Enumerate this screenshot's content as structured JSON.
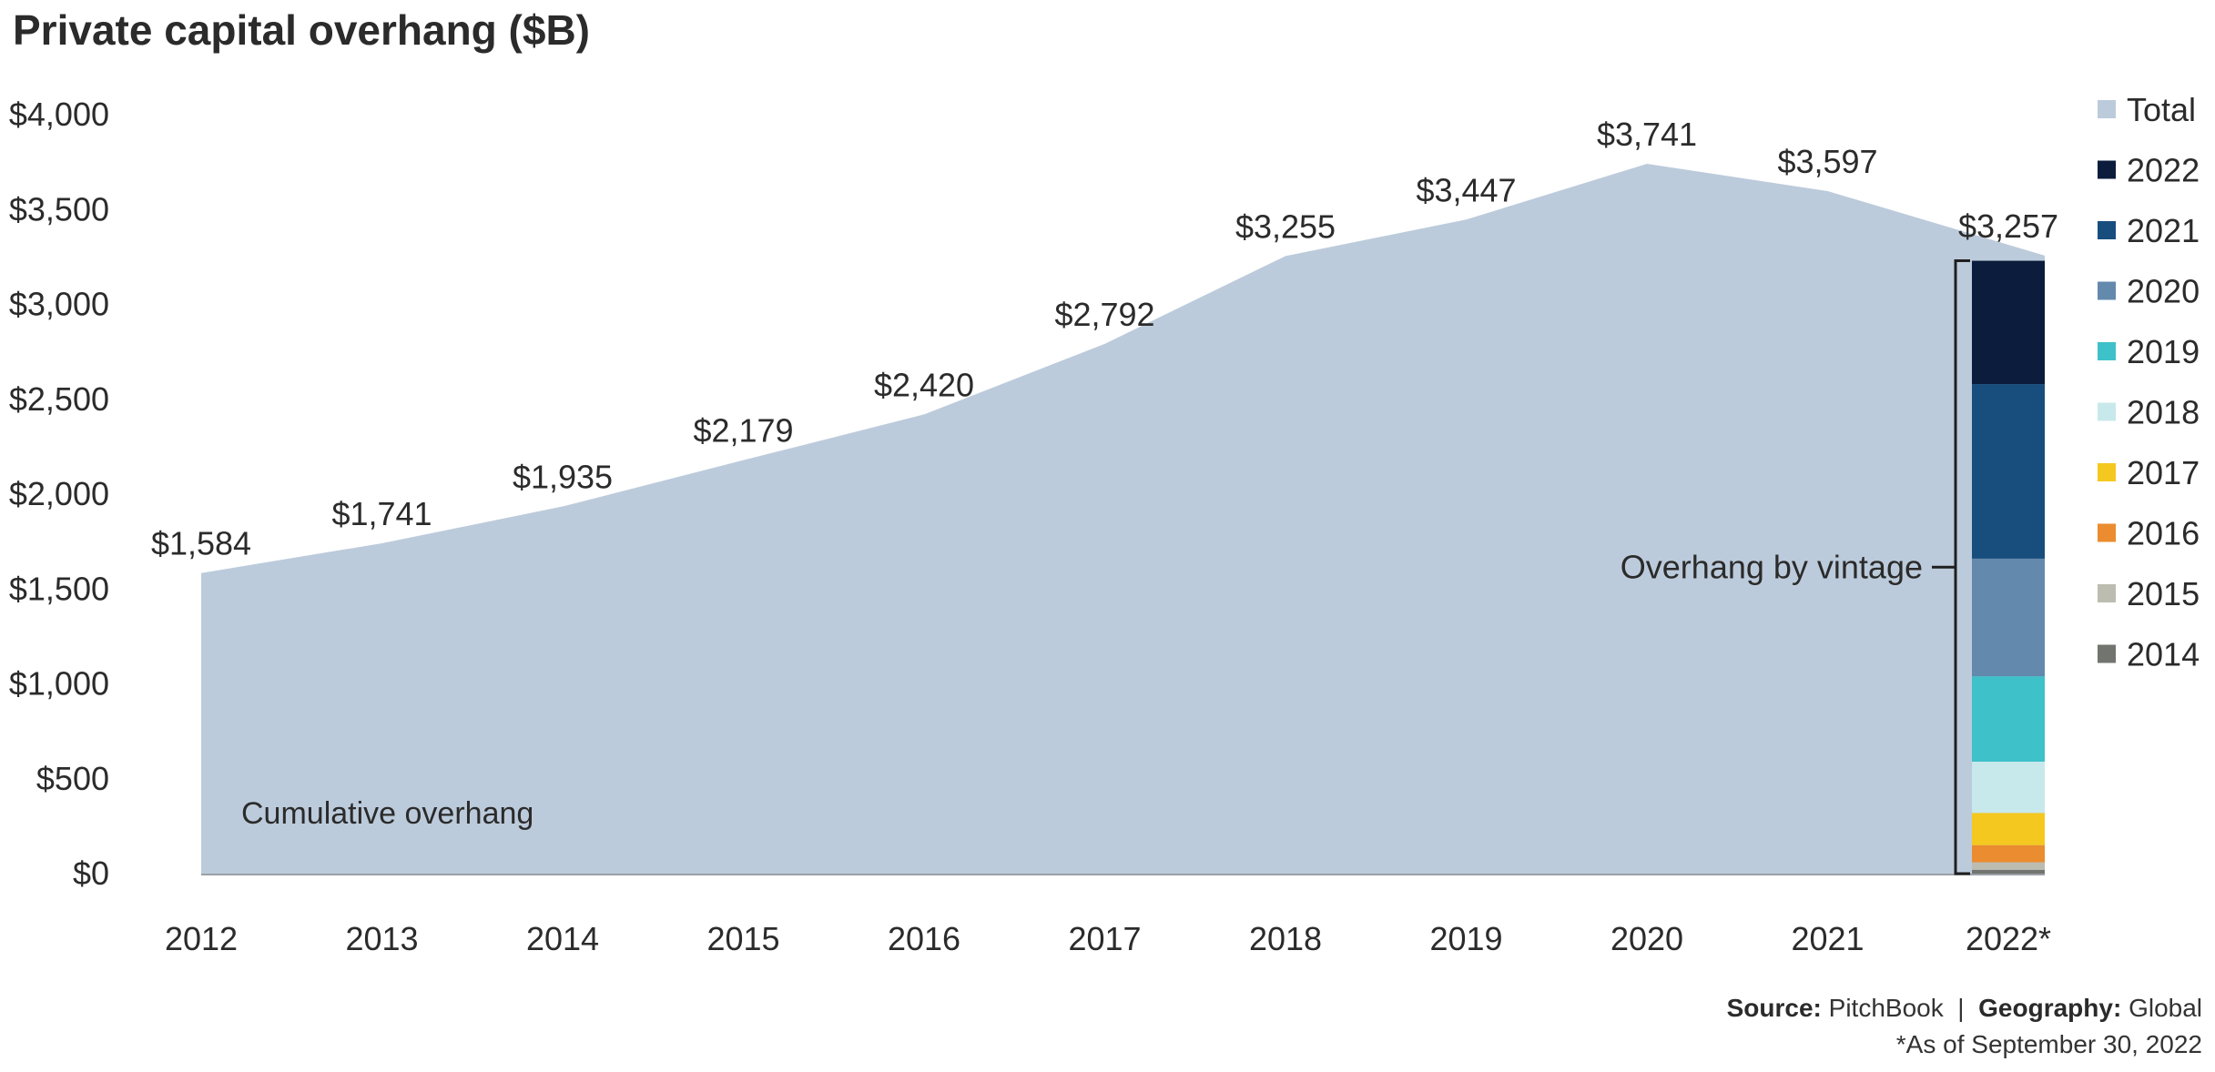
{
  "title": "Private capital overhang ($B)",
  "source": {
    "source_label": "Source:",
    "source_value": "PitchBook",
    "separator": "|",
    "geography_label": "Geography:",
    "geography_value": "Global",
    "note": "*As of September 30, 2022"
  },
  "chart_data": {
    "type": "area",
    "title": "Private capital overhang ($B)",
    "categories": [
      "2012",
      "2013",
      "2014",
      "2015",
      "2016",
      "2017",
      "2018",
      "2019",
      "2020",
      "2021",
      "2022*"
    ],
    "series": [
      {
        "name": "Total",
        "values": [
          1584,
          1741,
          1935,
          2179,
          2420,
          2792,
          3255,
          3447,
          3741,
          3597,
          3257
        ],
        "data_labels": [
          "$1,584",
          "$1,741",
          "$1,935",
          "$2,179",
          "$2,420",
          "$2,792",
          "$3,255",
          "$3,447",
          "$3,741",
          "$3,597",
          "$3,257"
        ]
      }
    ],
    "area_annotation": "Cumulative overhang",
    "vintage_breakdown": {
      "category": "2022*",
      "annotation": "Overhang by vintage",
      "segments": [
        {
          "name": "2014",
          "value": 20
        },
        {
          "name": "2015",
          "value": 40
        },
        {
          "name": "2016",
          "value": 90
        },
        {
          "name": "2017",
          "value": 170
        },
        {
          "name": "2018",
          "value": 270
        },
        {
          "name": "2019",
          "value": 450
        },
        {
          "name": "2020",
          "value": 620
        },
        {
          "name": "2021",
          "value": 920
        },
        {
          "name": "2022",
          "value": 650
        }
      ]
    },
    "y_ticks": [
      {
        "value": 0,
        "label": "$0"
      },
      {
        "value": 500,
        "label": "$500"
      },
      {
        "value": 1000,
        "label": "$1,000"
      },
      {
        "value": 1500,
        "label": "$1,500"
      },
      {
        "value": 2000,
        "label": "$2,000"
      },
      {
        "value": 2500,
        "label": "$2,500"
      },
      {
        "value": 3000,
        "label": "$3,000"
      },
      {
        "value": 3500,
        "label": "$3,500"
      },
      {
        "value": 4000,
        "label": "$4,000"
      }
    ],
    "xlabel": "",
    "ylabel": "",
    "ylim": [
      0,
      4000
    ],
    "grid": false,
    "legend_position": "right",
    "legend": [
      {
        "name": "Total",
        "color": "#bccbdb"
      },
      {
        "name": "2022",
        "color": "#0b1c3c"
      },
      {
        "name": "2021",
        "color": "#184e7e"
      },
      {
        "name": "2020",
        "color": "#6389ad"
      },
      {
        "name": "2019",
        "color": "#3ec1c9"
      },
      {
        "name": "2018",
        "color": "#c8e9eb"
      },
      {
        "name": "2017",
        "color": "#f4c81f"
      },
      {
        "name": "2016",
        "color": "#ea8c2f"
      },
      {
        "name": "2015",
        "color": "#bdbcb1"
      },
      {
        "name": "2014",
        "color": "#72746f"
      }
    ]
  }
}
